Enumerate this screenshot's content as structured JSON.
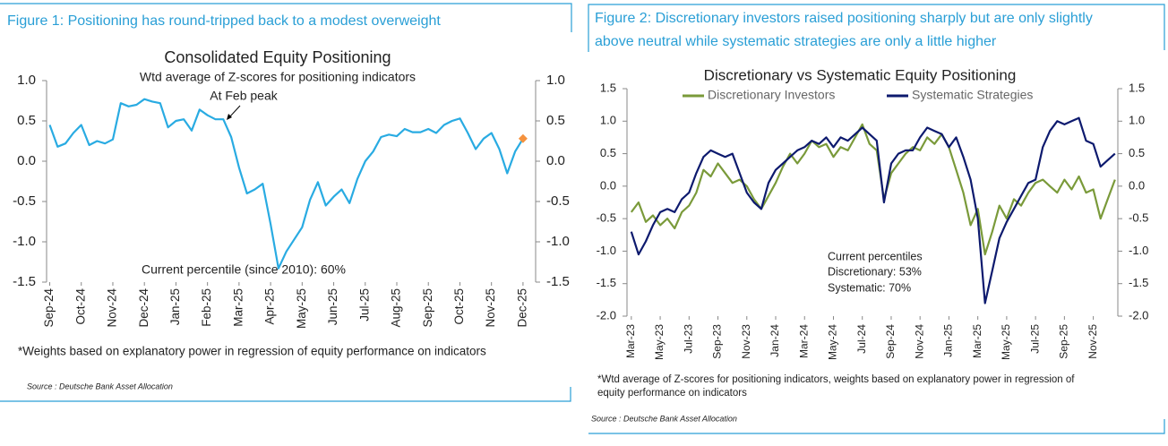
{
  "chart_data": [
    {
      "type": "line",
      "figure_caption": "Figure 1: Positioning has round-tripped back to a modest overweight",
      "title": "Consolidated Equity Positioning",
      "subtitle": "Wtd average of Z-scores for positioning indicators",
      "annotations": [
        "At Feb peak",
        "Current percentile (since 2010): 60%"
      ],
      "note": "*Weights based on explanatory power in regression of equity performance on indicators",
      "source": "Source : Deutsche Bank Asset Allocation",
      "x": [
        0,
        0.25,
        0.5,
        0.75,
        1,
        1.25,
        1.5,
        1.75,
        2,
        2.25,
        2.5,
        2.75,
        3,
        3.25,
        3.5,
        3.75,
        4,
        4.25,
        4.5,
        4.75,
        5,
        5.25,
        5.5,
        5.75,
        6,
        6.25,
        6.5,
        6.75,
        7,
        7.25,
        7.5,
        7.75,
        8,
        8.25,
        8.5,
        8.75,
        9,
        9.25,
        9.5,
        9.75,
        10,
        10.25,
        10.5,
        10.75,
        11,
        11.25,
        11.5,
        11.75,
        12,
        12.25,
        12.5,
        12.75,
        13,
        13.25,
        13.5,
        13.75,
        14,
        14.25,
        14.5,
        14.75,
        15
      ],
      "values": [
        0.45,
        0.18,
        0.22,
        0.35,
        0.45,
        0.2,
        0.25,
        0.22,
        0.27,
        0.72,
        0.68,
        0.7,
        0.77,
        0.74,
        0.72,
        0.42,
        0.5,
        0.52,
        0.38,
        0.64,
        0.57,
        0.52,
        0.52,
        0.3,
        -0.08,
        -0.4,
        -0.35,
        -0.28,
        -0.78,
        -1.33,
        -1.12,
        -0.97,
        -0.82,
        -0.48,
        -0.26,
        -0.55,
        -0.44,
        -0.35,
        -0.52,
        -0.22,
        0.0,
        0.12,
        0.3,
        0.33,
        0.31,
        0.4,
        0.36,
        0.36,
        0.4,
        0.35,
        0.45,
        0.5,
        0.53,
        0.35,
        0.15,
        0.28,
        0.35,
        0.15,
        -0.15,
        0.12,
        0.28
      ],
      "color": "#29abe2",
      "marker": {
        "x": 15,
        "y": 0.28,
        "color": "#f5923e"
      },
      "xlim": [
        -0.1,
        15.4
      ],
      "xticks": [
        {
          "value": 0,
          "label": "Sep-24"
        },
        {
          "value": 1,
          "label": "Oct-24"
        },
        {
          "value": 2,
          "label": "Nov-24"
        },
        {
          "value": 3,
          "label": "Dec-24"
        },
        {
          "value": 4,
          "label": "Jan-25"
        },
        {
          "value": 5,
          "label": "Feb-25"
        },
        {
          "value": 6,
          "label": "Mar-25"
        },
        {
          "value": 7,
          "label": "Apr-25"
        },
        {
          "value": 8,
          "label": "May-25"
        },
        {
          "value": 9,
          "label": "Jun-25"
        },
        {
          "value": 10,
          "label": "Jul-25"
        },
        {
          "value": 11,
          "label": "Aug-25"
        },
        {
          "value": 12,
          "label": "Sep-25"
        },
        {
          "value": 13,
          "label": "Oct-25"
        },
        {
          "value": 14,
          "label": "Nov-25"
        },
        {
          "value": 15,
          "label": "Dec-25"
        }
      ],
      "ylim": [
        -1.5,
        1
      ],
      "yticks": [
        -1.5,
        {
          "value": -1,
          "label": "-1.0"
        },
        -0.5,
        {
          "value": 0,
          "label": "0.0"
        },
        0.5,
        {
          "value": 1,
          "label": "1.0"
        }
      ],
      "y2lim": [
        -1.5,
        1
      ],
      "y2ticks": [
        -1.5,
        {
          "value": -1,
          "label": "-1.0"
        },
        -0.5,
        {
          "value": 0,
          "label": "0.0"
        },
        0.5,
        {
          "value": 1,
          "label": "1.0"
        }
      ],
      "grid": false
    },
    {
      "type": "line",
      "figure_caption": [
        "Figure 2: Discretionary investors raised positioning sharply but are only slightly",
        "above neutral while systematic strategies are only a little higher"
      ],
      "title": "Discretionary  vs Systematic Equity Positioning",
      "annotations": [
        "Current percentiles",
        "Discretionary: 53%",
        "Systematic: 70%"
      ],
      "note": [
        "*Wtd average of Z-scores for positioning indicators, weights based on explanatory power in regression of",
        "equity performance on indicators"
      ],
      "source": "Source : Deutsche Bank Asset Allocation",
      "x": [
        0,
        0.5,
        1,
        1.5,
        2,
        2.5,
        3,
        3.5,
        4,
        4.5,
        5,
        5.5,
        6,
        6.5,
        7,
        7.5,
        8,
        8.5,
        9,
        9.5,
        10,
        10.5,
        11,
        11.5,
        12,
        12.5,
        13,
        13.5,
        14,
        14.5,
        15,
        15.5,
        16,
        16.5,
        17,
        17.5,
        18,
        18.5,
        19,
        19.5,
        20,
        20.5,
        21,
        21.5,
        22,
        22.5,
        23,
        23.5,
        24,
        24.5,
        25,
        25.5,
        26,
        26.5,
        27,
        27.5,
        28,
        28.5,
        29,
        29.5,
        30,
        30.5,
        31,
        31.5,
        32,
        32.5,
        33,
        33.5
      ],
      "series": [
        {
          "name": "Discretionary Investors",
          "color": "#7a9a3a",
          "values": [
            -0.4,
            -0.25,
            -0.55,
            -0.45,
            -0.6,
            -0.5,
            -0.65,
            -0.4,
            -0.3,
            -0.1,
            0.25,
            0.15,
            0.35,
            0.2,
            0.05,
            0.1,
            0.0,
            -0.2,
            -0.35,
            -0.15,
            0.05,
            0.3,
            0.5,
            0.35,
            0.5,
            0.7,
            0.6,
            0.65,
            0.45,
            0.6,
            0.55,
            0.75,
            0.95,
            0.65,
            0.55,
            -0.2,
            0.2,
            0.35,
            0.5,
            0.6,
            0.55,
            0.75,
            0.65,
            0.8,
            0.6,
            0.25,
            -0.1,
            -0.6,
            -0.35,
            -1.05,
            -0.7,
            -0.3,
            -0.5,
            -0.2,
            -0.3,
            -0.1,
            0.05,
            0.1,
            0.0,
            -0.1,
            0.1,
            -0.05,
            0.15,
            -0.1,
            -0.05,
            -0.5,
            -0.2,
            0.1
          ]
        },
        {
          "name": "Systematic Strategies",
          "color": "#0d1a6e",
          "values": [
            -0.7,
            -1.05,
            -0.85,
            -0.6,
            -0.4,
            -0.35,
            -0.4,
            -0.2,
            -0.1,
            0.2,
            0.45,
            0.55,
            0.5,
            0.45,
            0.5,
            0.2,
            -0.1,
            -0.25,
            -0.35,
            0.05,
            0.25,
            0.35,
            0.45,
            0.55,
            0.6,
            0.7,
            0.65,
            0.75,
            0.6,
            0.75,
            0.7,
            0.8,
            0.9,
            0.8,
            0.7,
            -0.25,
            0.35,
            0.5,
            0.55,
            0.55,
            0.75,
            0.9,
            0.85,
            0.8,
            0.6,
            0.75,
            0.45,
            0.1,
            -0.5,
            -1.8,
            -1.3,
            -0.8,
            -0.55,
            -0.35,
            -0.15,
            0.05,
            0.1,
            0.6,
            0.85,
            1.0,
            0.95,
            1.0,
            1.05,
            0.7,
            0.65,
            0.3,
            0.4,
            0.5
          ]
        }
      ],
      "xlim": [
        -0.3,
        33.7
      ],
      "xticks": [
        {
          "value": 0,
          "label": "Mar-23"
        },
        {
          "value": 2,
          "label": "May-23"
        },
        {
          "value": 4,
          "label": "Jul-23"
        },
        {
          "value": 6,
          "label": "Sep-23"
        },
        {
          "value": 8,
          "label": "Nov-23"
        },
        {
          "value": 10,
          "label": "Jan-24"
        },
        {
          "value": 12,
          "label": "Mar-24"
        },
        {
          "value": 14,
          "label": "May-24"
        },
        {
          "value": 16,
          "label": "Jul-24"
        },
        {
          "value": 18,
          "label": "Sep-24"
        },
        {
          "value": 20,
          "label": "Nov-24"
        },
        {
          "value": 22,
          "label": "Jan-25"
        },
        {
          "value": 24,
          "label": "Mar-25"
        },
        {
          "value": 26,
          "label": "May-25"
        },
        {
          "value": 28,
          "label": "Jul-25"
        },
        {
          "value": 30,
          "label": "Sep-25"
        },
        {
          "value": 32,
          "label": "Nov-25"
        }
      ],
      "ylim": [
        -2,
        1.5
      ],
      "yticks": [
        {
          "value": -2,
          "label": "-2.0"
        },
        -1.5,
        {
          "value": -1,
          "label": "-1.0"
        },
        -0.5,
        {
          "value": 0,
          "label": "0.0"
        },
        0.5,
        {
          "value": 1,
          "label": "1.0"
        },
        1.5
      ],
      "y2lim": [
        -2,
        1.5
      ],
      "y2ticks": [
        {
          "value": -2,
          "label": "-2.0"
        },
        -1.5,
        {
          "value": -1,
          "label": "-1.0"
        },
        -0.5,
        {
          "value": 0,
          "label": "0.0"
        },
        0.5,
        {
          "value": 1,
          "label": "1.0"
        },
        1.5
      ],
      "grid": false
    }
  ]
}
